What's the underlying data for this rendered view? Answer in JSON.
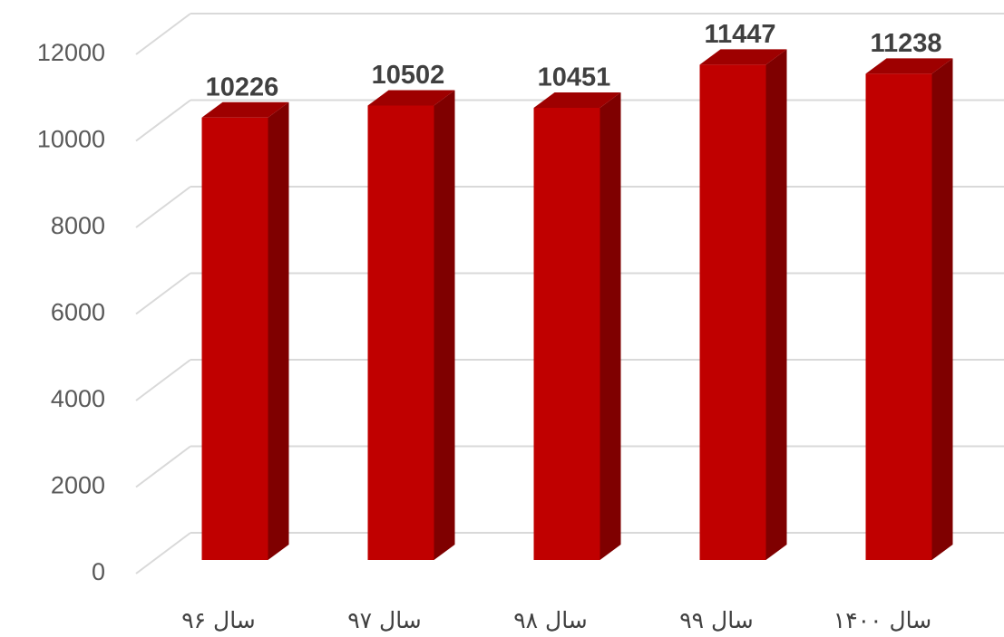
{
  "chart_data": {
    "type": "bar3d",
    "categories": [
      "سال ۹۶",
      "سال ۹۷",
      "سال ۹۸",
      "سال ۹۹",
      "سال ۱۴۰۰"
    ],
    "values": [
      10226,
      10502,
      10451,
      11447,
      11238
    ],
    "color": "#c00000",
    "ylim": [
      0,
      12000
    ],
    "yticks": [
      0,
      2000,
      4000,
      6000,
      8000,
      10000,
      12000
    ],
    "grid": true
  }
}
